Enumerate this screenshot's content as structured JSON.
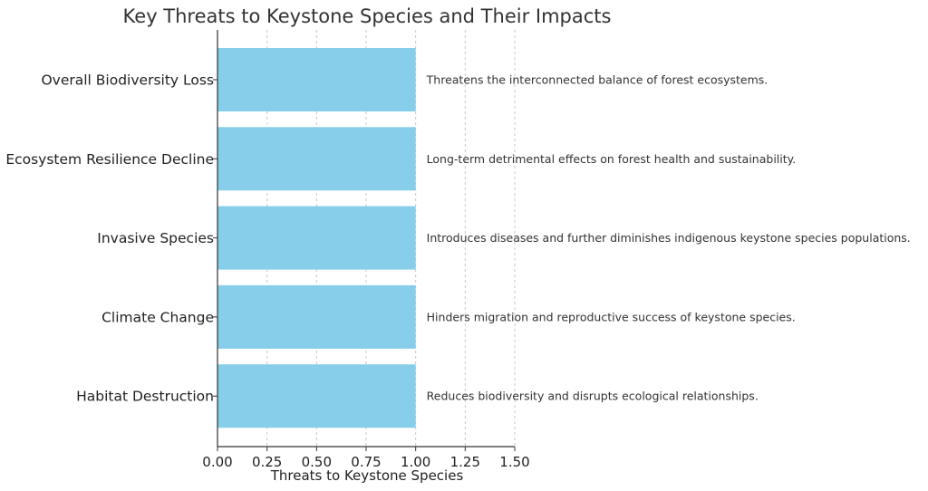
{
  "chart_data": {
    "type": "bar",
    "orientation": "horizontal",
    "title": "Key Threats to Keystone Species and Their Impacts",
    "xlabel": "Threats to Keystone Species",
    "ylabel": "",
    "xlim": [
      0,
      1.5
    ],
    "xticks": [
      "0.00",
      "0.25",
      "0.50",
      "0.75",
      "1.00",
      "1.25",
      "1.50"
    ],
    "grid": "x-dashed",
    "bar_color": "#87ceeb",
    "categories": [
      "Overall Biodiversity Loss",
      "Ecosystem Resilience Decline",
      "Invasive Species",
      "Climate Change",
      "Habitat Destruction"
    ],
    "values": [
      1,
      1,
      1,
      1,
      1
    ],
    "annotations": [
      "Threatens the interconnected balance of forest ecosystems.",
      "Long-term detrimental effects on forest health and sustainability.",
      "Introduces diseases and further diminishes indigenous keystone species populations.",
      "Hinders migration and reproductive success of keystone species.",
      "Reduces biodiversity and disrupts ecological relationships."
    ]
  }
}
